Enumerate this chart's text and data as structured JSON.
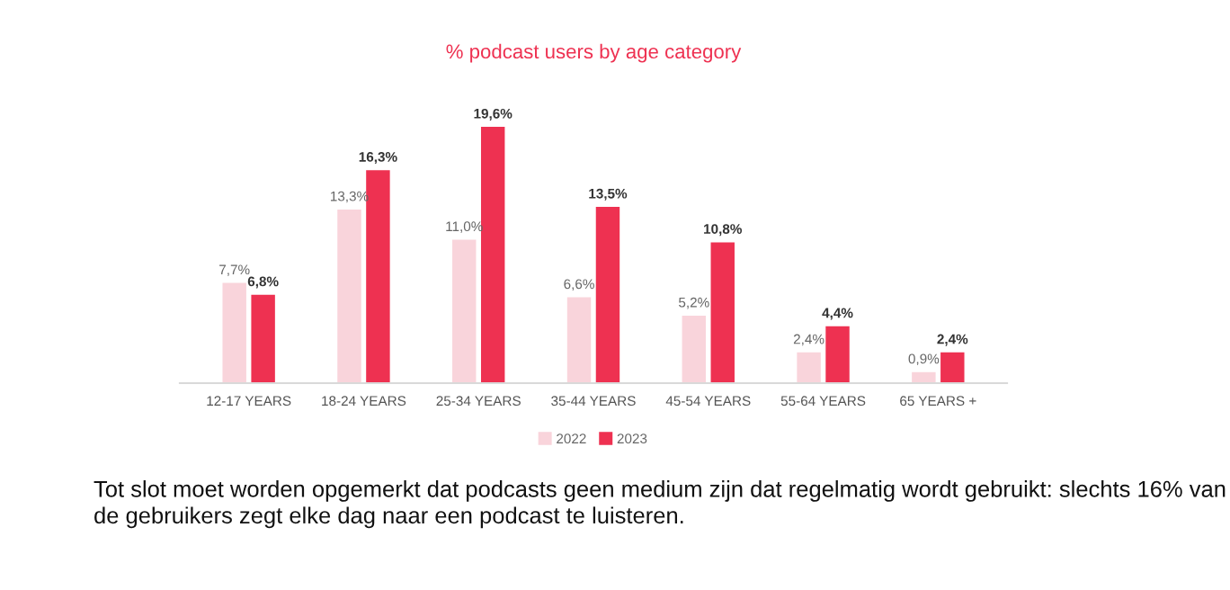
{
  "chart_data": {
    "type": "bar",
    "title": "% podcast users by age category",
    "categories": [
      "12-17 YEARS",
      "18-24 YEARS",
      "25-34 YEARS",
      "35-44 YEARS",
      "45-54 YEARS",
      "55-64 YEARS",
      "65 YEARS +"
    ],
    "series": [
      {
        "name": "2022",
        "color": "#f9d4db",
        "values": [
          7.7,
          13.3,
          11.0,
          6.6,
          5.2,
          2.4,
          0.9
        ],
        "value_labels": [
          "7,7%",
          "13,3%",
          "11,0%",
          "6,6%",
          "5,2%",
          "2,4%",
          "0,9%"
        ]
      },
      {
        "name": "2023",
        "color": "#ee3151",
        "values": [
          6.8,
          16.3,
          19.6,
          13.5,
          10.8,
          4.4,
          2.4
        ],
        "value_labels": [
          "6,8%",
          "16,3%",
          "19,6%",
          "13,5%",
          "10,8%",
          "4,4%",
          "2,4%"
        ]
      }
    ],
    "tick_labels": "x",
    "grid": false,
    "legend": "bottom",
    "annotations": [
      "Tot slot moet worden opgemerkt dat podcasts geen medium zijn dat regelmatig wordt gebruikt: slechts 16% van de gebruikers zegt elke dag naar een podcast te luisteren."
    ]
  }
}
